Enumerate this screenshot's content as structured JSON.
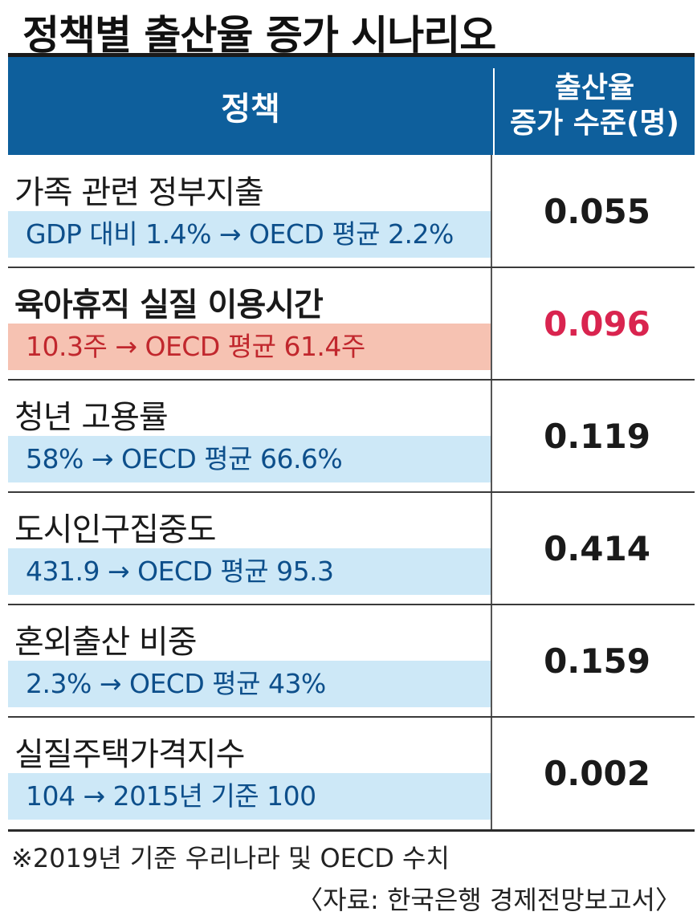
{
  "chart_data": {
    "type": "table",
    "title": "정책별 출산율 증가 시나리오",
    "columns": [
      "정책",
      "출산율\n증가 수준(명)"
    ],
    "rows": [
      {
        "policy": "가족 관련 정부지출",
        "detail": "GDP 대비 1.4% → OECD 평균 2.2%",
        "value": "0.055",
        "highlight": false
      },
      {
        "policy": "육아휴직 실질 이용시간",
        "detail": "10.3주 → OECD 평균 61.4주",
        "value": "0.096",
        "highlight": true
      },
      {
        "policy": "청년 고용률",
        "detail": "58% → OECD 평균 66.6%",
        "value": "0.119",
        "highlight": false
      },
      {
        "policy": "도시인구집중도",
        "detail": "431.9 → OECD 평균 95.3",
        "value": "0.414",
        "highlight": false
      },
      {
        "policy": "혼외출산 비중",
        "detail": "2.3% → OECD 평균 43%",
        "value": "0.159",
        "highlight": false
      },
      {
        "policy": "실질주택가격지수",
        "detail": "104 → 2015년 기준 100",
        "value": "0.002",
        "highlight": false
      }
    ],
    "note": "※2019년 기준 우리나라 및 OECD 수치",
    "source": "〈자료: 한국은행 경제전망보고서〉"
  },
  "colors": {
    "header": "#0e5f9c",
    "detail_bg": "#cde8f7",
    "detail_text": "#0d4f8b",
    "highlight_bg": "#f6c2b2",
    "highlight_text": "#c1272d",
    "highlight_value": "#d9244f"
  }
}
